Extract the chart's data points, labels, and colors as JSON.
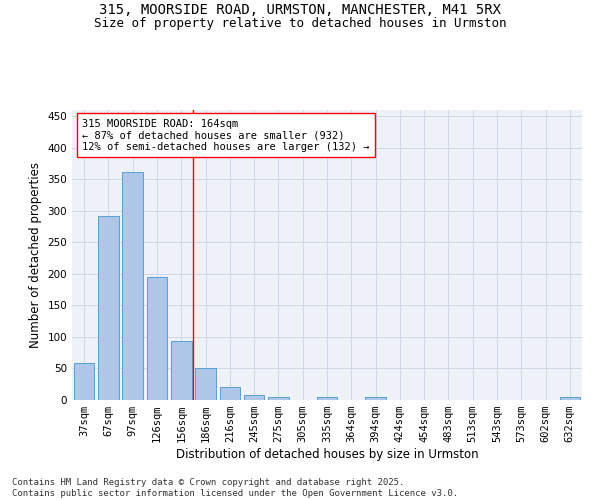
{
  "title1": "315, MOORSIDE ROAD, URMSTON, MANCHESTER, M41 5RX",
  "title2": "Size of property relative to detached houses in Urmston",
  "xlabel": "Distribution of detached houses by size in Urmston",
  "ylabel": "Number of detached properties",
  "categories": [
    "37sqm",
    "67sqm",
    "97sqm",
    "126sqm",
    "156sqm",
    "186sqm",
    "216sqm",
    "245sqm",
    "275sqm",
    "305sqm",
    "335sqm",
    "364sqm",
    "394sqm",
    "424sqm",
    "454sqm",
    "483sqm",
    "513sqm",
    "543sqm",
    "573sqm",
    "602sqm",
    "632sqm"
  ],
  "values": [
    58,
    292,
    362,
    195,
    93,
    50,
    20,
    8,
    5,
    0,
    5,
    0,
    4,
    0,
    0,
    0,
    0,
    0,
    0,
    0,
    4
  ],
  "bar_color": "#aec6e8",
  "bar_edge_color": "#5a9fd4",
  "grid_color": "#d0d8e8",
  "background_color": "#eef2f8",
  "annotation_line1": "315 MOORSIDE ROAD: 164sqm",
  "annotation_line2": "← 87% of detached houses are smaller (932)",
  "annotation_line3": "12% of semi-detached houses are larger (132) →",
  "red_line_x": 4.47,
  "ylim": [
    0,
    460
  ],
  "yticks": [
    0,
    50,
    100,
    150,
    200,
    250,
    300,
    350,
    400,
    450
  ],
  "footnote": "Contains HM Land Registry data © Crown copyright and database right 2025.\nContains public sector information licensed under the Open Government Licence v3.0.",
  "title_fontsize": 10,
  "subtitle_fontsize": 9,
  "annotation_fontsize": 7.5,
  "axis_label_fontsize": 8.5,
  "tick_fontsize": 7.5,
  "footnote_fontsize": 6.5
}
